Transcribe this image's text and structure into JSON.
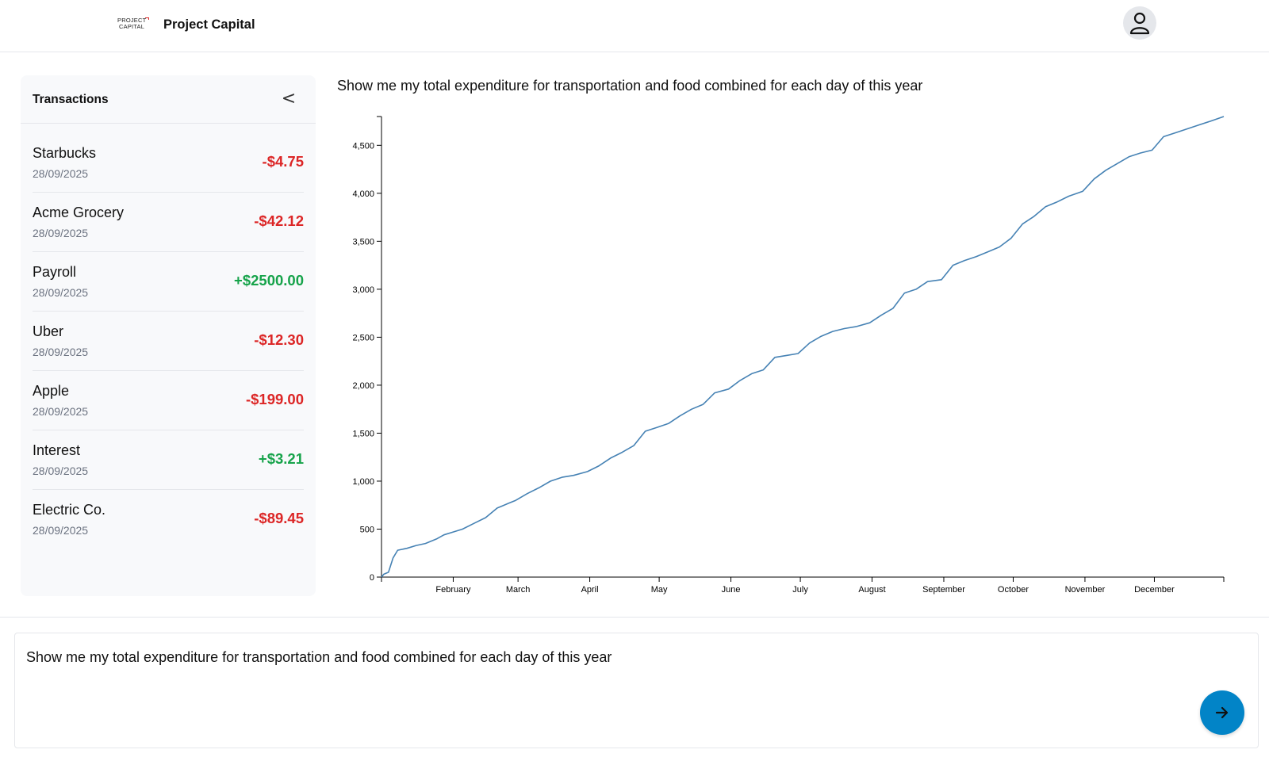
{
  "header": {
    "logo_line1": "PROJECT",
    "logo_line2": "CAPITAL",
    "title": "Project Capital",
    "avatar_icon": "user-icon"
  },
  "sidebar": {
    "title": "Transactions",
    "collapse_label": "<",
    "items": [
      {
        "name": "Starbucks",
        "date": "28/09/2025",
        "amount": "-$4.75",
        "type": "debit"
      },
      {
        "name": "Acme Grocery",
        "date": "28/09/2025",
        "amount": "-$42.12",
        "type": "debit"
      },
      {
        "name": "Payroll",
        "date": "28/09/2025",
        "amount": "+$2500.00",
        "type": "credit"
      },
      {
        "name": "Uber",
        "date": "28/09/2025",
        "amount": "-$12.30",
        "type": "debit"
      },
      {
        "name": "Apple",
        "date": "28/09/2025",
        "amount": "-$199.00",
        "type": "debit"
      },
      {
        "name": "Interest",
        "date": "28/09/2025",
        "amount": "+$3.21",
        "type": "credit"
      },
      {
        "name": "Electric Co.",
        "date": "28/09/2025",
        "amount": "-$89.45",
        "type": "debit"
      }
    ]
  },
  "chart_title": "Show me my total expenditure for transportation and food combined for each day of this year",
  "chart_data": {
    "type": "line",
    "title": "",
    "xlabel": "",
    "ylabel": "",
    "ylim": [
      0,
      4800
    ],
    "yticks": [
      0,
      500,
      1000,
      1500,
      2000,
      2500,
      3000,
      3500,
      4000,
      4500
    ],
    "ytick_labels": [
      "0",
      "500",
      "1,000",
      "1,500",
      "2,000",
      "2,500",
      "3,000",
      "3,500",
      "4,000",
      "4,500"
    ],
    "xticks": [
      "2025-02-01",
      "2025-03-01",
      "2025-04-01",
      "2025-05-01",
      "2025-06-01",
      "2025-07-01",
      "2025-08-01",
      "2025-09-01",
      "2025-10-01",
      "2025-11-01",
      "2025-12-01"
    ],
    "xtick_labels": [
      "February",
      "March",
      "April",
      "May",
      "June",
      "July",
      "August",
      "September",
      "October",
      "November",
      "December"
    ],
    "xlim": [
      "2025-01-01",
      "2025-12-31"
    ],
    "line_color": "#4682b4",
    "grid": false,
    "series": [
      {
        "x": [
          "2025-01-01",
          "2025-01-02",
          "2025-01-04",
          "2025-01-06",
          "2025-01-08",
          "2025-01-12",
          "2025-01-16",
          "2025-01-20",
          "2025-01-25",
          "2025-01-28",
          "2025-02-01",
          "2025-02-05",
          "2025-02-10",
          "2025-02-15",
          "2025-02-20",
          "2025-02-25",
          "2025-02-28",
          "2025-03-05",
          "2025-03-10",
          "2025-03-15",
          "2025-03-20",
          "2025-03-25",
          "2025-03-31",
          "2025-04-05",
          "2025-04-10",
          "2025-04-15",
          "2025-04-20",
          "2025-04-25",
          "2025-04-30",
          "2025-05-05",
          "2025-05-10",
          "2025-05-15",
          "2025-05-20",
          "2025-05-25",
          "2025-05-31",
          "2025-06-05",
          "2025-06-10",
          "2025-06-15",
          "2025-06-20",
          "2025-06-25",
          "2025-06-30",
          "2025-07-05",
          "2025-07-10",
          "2025-07-15",
          "2025-07-20",
          "2025-07-25",
          "2025-07-31",
          "2025-08-05",
          "2025-08-10",
          "2025-08-15",
          "2025-08-20",
          "2025-08-25",
          "2025-08-31",
          "2025-09-05",
          "2025-09-10",
          "2025-09-15",
          "2025-09-20",
          "2025-09-25",
          "2025-09-30",
          "2025-10-05",
          "2025-10-10",
          "2025-10-15",
          "2025-10-20",
          "2025-10-25",
          "2025-10-31",
          "2025-11-05",
          "2025-11-10",
          "2025-11-15",
          "2025-11-20",
          "2025-11-25",
          "2025-11-30",
          "2025-12-05",
          "2025-12-10",
          "2025-12-15",
          "2025-12-20",
          "2025-12-25",
          "2025-12-31"
        ],
        "y": [
          0,
          30,
          50,
          200,
          280,
          300,
          330,
          350,
          400,
          440,
          470,
          500,
          560,
          620,
          720,
          770,
          800,
          870,
          930,
          1000,
          1040,
          1060,
          1100,
          1160,
          1240,
          1300,
          1370,
          1520,
          1560,
          1600,
          1680,
          1750,
          1800,
          1920,
          1960,
          2050,
          2120,
          2160,
          2290,
          2310,
          2330,
          2440,
          2510,
          2560,
          2590,
          2610,
          2650,
          2730,
          2800,
          2960,
          3000,
          3080,
          3100,
          3250,
          3300,
          3340,
          3390,
          3440,
          3530,
          3680,
          3760,
          3860,
          3910,
          3970,
          4020,
          4150,
          4240,
          4310,
          4380,
          4420,
          4450,
          4590,
          4630,
          4670,
          4710,
          4750,
          4800
        ]
      }
    ]
  },
  "prompt": {
    "value": "Show me my total expenditure for transportation and food combined for each day of this year",
    "send_icon": "arrow-right-icon"
  }
}
